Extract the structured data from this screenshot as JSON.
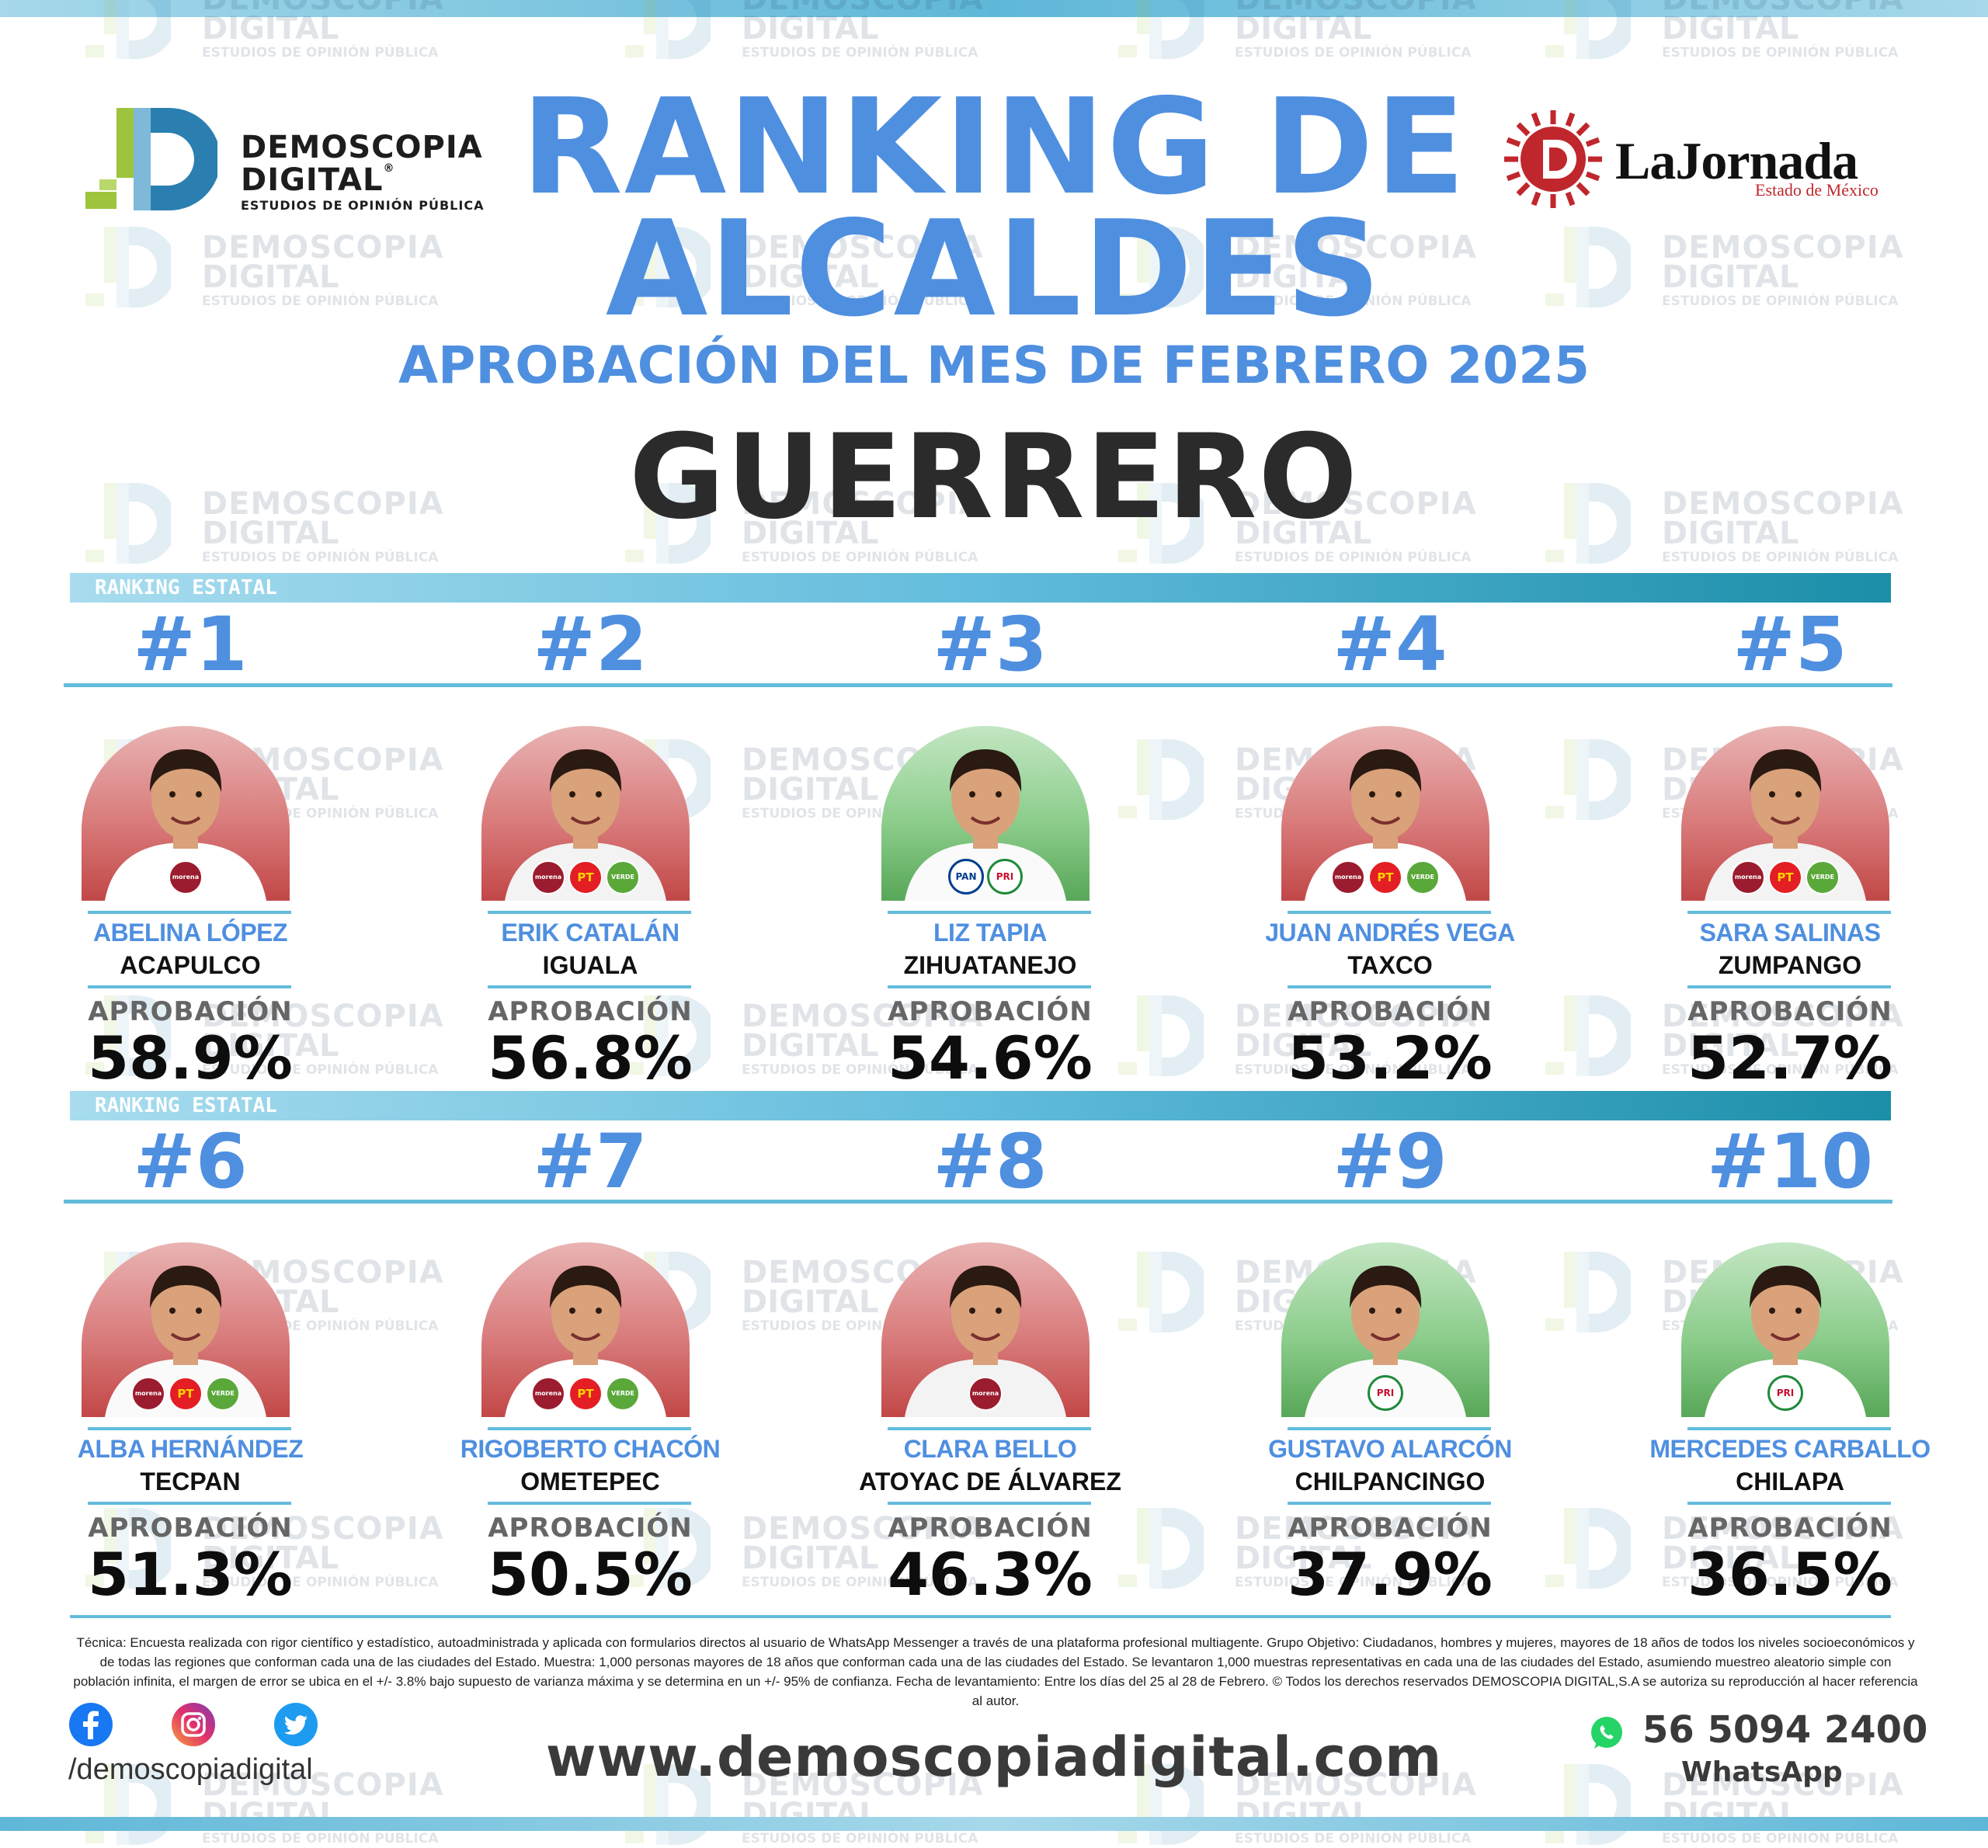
{
  "header": {
    "brand_left": {
      "line1": "DEMOSCOPIA",
      "line2": "DIGITAL",
      "tagline": "ESTUDIOS DE OPINIÓN PÚBLICA",
      "registered": "®"
    },
    "brand_right": {
      "name": "LaJornada",
      "sub": "Estado de México"
    },
    "title_line1": "RANKING DE",
    "title_line2": "ALCALDES",
    "subtitle": "APROBACIÓN DEL MES DE FEBRERO 2025",
    "state": "GUERRERO"
  },
  "watermark": {
    "line1": "DEMOSCOPIA",
    "line2": "DIGITAL",
    "line3": "ESTUDIOS DE OPINIÓN PÚBLICA"
  },
  "section_label": "RANKING ESTATAL",
  "approval_label": "APROBACIÓN",
  "rankings": [
    {
      "rank": "#1",
      "name": "ABELINA LÓPEZ",
      "city": "ACAPULCO",
      "approval": "58.9%",
      "approval_value": 58.9,
      "bg": "red",
      "parties": [
        "morena"
      ]
    },
    {
      "rank": "#2",
      "name": "ERIK CATALÁN",
      "city": "IGUALA",
      "approval": "56.8%",
      "approval_value": 56.8,
      "bg": "red",
      "parties": [
        "morena",
        "PT",
        "VERDE"
      ]
    },
    {
      "rank": "#3",
      "name": "LIZ TAPIA",
      "city": "ZIHUATANEJO",
      "approval": "54.6%",
      "approval_value": 54.6,
      "bg": "green",
      "parties": [
        "PAN",
        "PRI"
      ]
    },
    {
      "rank": "#4",
      "name": "JUAN ANDRÉS VEGA",
      "city": "TAXCO",
      "approval": "53.2%",
      "approval_value": 53.2,
      "bg": "red",
      "parties": [
        "morena",
        "PT",
        "VERDE"
      ]
    },
    {
      "rank": "#5",
      "name": "SARA SALINAS",
      "city": "ZUMPANGO",
      "approval": "52.7%",
      "approval_value": 52.7,
      "bg": "red",
      "parties": [
        "morena",
        "PT",
        "VERDE"
      ]
    },
    {
      "rank": "#6",
      "name": "ALBA HERNÁNDEZ",
      "city": "TECPAN",
      "approval": "51.3%",
      "approval_value": 51.3,
      "bg": "red",
      "parties": [
        "morena",
        "PT",
        "VERDE"
      ]
    },
    {
      "rank": "#7",
      "name": "RIGOBERTO CHACÓN",
      "city": "OMETEPEC",
      "approval": "50.5%",
      "approval_value": 50.5,
      "bg": "red",
      "parties": [
        "morena",
        "PT",
        "VERDE"
      ]
    },
    {
      "rank": "#8",
      "name": "CLARA BELLO",
      "city": "ATOYAC DE ÁLVAREZ",
      "approval": "46.3%",
      "approval_value": 46.3,
      "bg": "red",
      "parties": [
        "morena"
      ]
    },
    {
      "rank": "#9",
      "name": "GUSTAVO ALARCÓN",
      "city": "CHILPANCINGO",
      "approval": "37.9%",
      "approval_value": 37.9,
      "bg": "green",
      "parties": [
        "PRI"
      ]
    },
    {
      "rank": "#10",
      "name": "MERCEDES CARBALLO",
      "city": "CHILAPA",
      "approval": "36.5%",
      "approval_value": 36.5,
      "bg": "green",
      "parties": [
        "PRI"
      ]
    }
  ],
  "footer": {
    "technical_note": "Técnica: Encuesta realizada con rigor científico y estadístico, autoadministrada y aplicada con formularios directos al usuario de WhatsApp Messenger a través de una plataforma profesional multiagente. Grupo Objetivo: Ciudadanos, hombres y mujeres, mayores de 18 años de todos los niveles socioeconómicos y de todas las regiones que conforman cada una de las ciudades del Estado. Muestra: 1,000 personas mayores de 18 años que conforman cada una de las ciudades del Estado. Se levantaron 1,000 muestras representativas en cada una de las ciudades del Estado, asumiendo muestreo aleatorio simple con población infinita, el margen de error se ubica en el +/- 3.8% bajo supuesto de varianza máxima y se determina en un +/- 95% de confianza. Fecha de levantamiento: Entre los días del 25 al 28 de Febrero. © Todos los derechos reservados DEMOSCOPIA DIGITAL,S.A se autoriza su reproducción al hacer referencia al autor.",
    "social_icons": [
      "facebook-icon",
      "instagram-icon",
      "twitter-icon"
    ],
    "handle": "/demoscopiadigital",
    "website": "www.demoscopiadigital.com",
    "phone": "56 5094 2400",
    "whatsapp_label": "WhatsApp"
  },
  "colors": {
    "accent_blue": "#4f8fe0",
    "bar_teal": "#1b8ea8",
    "light_cyan": "#62bcdc",
    "title_dark": "#2b2b2b"
  }
}
